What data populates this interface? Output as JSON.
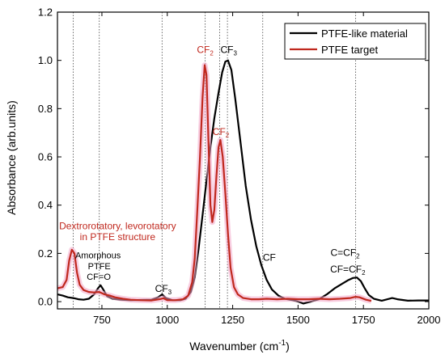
{
  "chart_data": {
    "type": "line",
    "xlabel": "Wavenumber (cm",
    "xlabel_sup": "-1",
    "xlabel_end": ")",
    "ylabel": "Absorbance (arb.units)",
    "xlim": [
      580,
      2000
    ],
    "ylim": [
      -0.03,
      1.2
    ],
    "xticks": [
      750,
      1000,
      1250,
      1500,
      1750,
      2000
    ],
    "xtick_labels": [
      "750",
      "1000",
      "1250",
      "1500",
      "1750",
      "2000"
    ],
    "yticks": [
      0.0,
      0.2,
      0.4,
      0.6,
      0.8,
      1.0,
      1.2
    ],
    "ytick_labels": [
      "0.0",
      "0.2",
      "0.4",
      "0.6",
      "0.8",
      "1.0",
      "1.2"
    ],
    "reference_lines_x": [
      640,
      740,
      980,
      1145,
      1200,
      1230,
      1365,
      1720
    ],
    "legend_position": "top-right",
    "series": [
      {
        "name": "PTFE-like material",
        "color": "#000000",
        "points": [
          [
            580,
            0.03
          ],
          [
            600,
            0.025
          ],
          [
            620,
            0.018
          ],
          [
            640,
            0.015
          ],
          [
            660,
            0.01
          ],
          [
            680,
            0.008
          ],
          [
            700,
            0.012
          ],
          [
            720,
            0.03
          ],
          [
            735,
            0.055
          ],
          [
            745,
            0.068
          ],
          [
            755,
            0.05
          ],
          [
            770,
            0.022
          ],
          [
            790,
            0.012
          ],
          [
            820,
            0.008
          ],
          [
            860,
            0.006
          ],
          [
            900,
            0.007
          ],
          [
            940,
            0.008
          ],
          [
            965,
            0.018
          ],
          [
            980,
            0.03
          ],
          [
            995,
            0.015
          ],
          [
            1020,
            0.006
          ],
          [
            1050,
            0.006
          ],
          [
            1070,
            0.012
          ],
          [
            1090,
            0.04
          ],
          [
            1105,
            0.1
          ],
          [
            1120,
            0.22
          ],
          [
            1135,
            0.36
          ],
          [
            1150,
            0.5
          ],
          [
            1165,
            0.64
          ],
          [
            1180,
            0.76
          ],
          [
            1195,
            0.86
          ],
          [
            1210,
            0.95
          ],
          [
            1222,
            0.995
          ],
          [
            1232,
            1.0
          ],
          [
            1245,
            0.96
          ],
          [
            1260,
            0.84
          ],
          [
            1280,
            0.66
          ],
          [
            1300,
            0.48
          ],
          [
            1320,
            0.34
          ],
          [
            1340,
            0.23
          ],
          [
            1360,
            0.15
          ],
          [
            1380,
            0.09
          ],
          [
            1400,
            0.05
          ],
          [
            1425,
            0.025
          ],
          [
            1450,
            0.012
          ],
          [
            1480,
            0.006
          ],
          [
            1500,
            0.0
          ],
          [
            1520,
            -0.008
          ],
          [
            1550,
            0.0
          ],
          [
            1580,
            0.01
          ],
          [
            1610,
            0.03
          ],
          [
            1640,
            0.055
          ],
          [
            1670,
            0.075
          ],
          [
            1690,
            0.088
          ],
          [
            1710,
            0.098
          ],
          [
            1725,
            0.1
          ],
          [
            1740,
            0.085
          ],
          [
            1755,
            0.055
          ],
          [
            1770,
            0.028
          ],
          [
            1790,
            0.012
          ],
          [
            1820,
            0.004
          ],
          [
            1860,
            0.015
          ],
          [
            1880,
            0.01
          ],
          [
            1920,
            0.004
          ],
          [
            1960,
            0.005
          ],
          [
            2000,
            0.005
          ]
        ]
      },
      {
        "name": "PTFE target",
        "color": "#c0281e",
        "points": [
          [
            580,
            0.055
          ],
          [
            600,
            0.06
          ],
          [
            615,
            0.09
          ],
          [
            625,
            0.17
          ],
          [
            635,
            0.215
          ],
          [
            645,
            0.2
          ],
          [
            655,
            0.12
          ],
          [
            665,
            0.07
          ],
          [
            680,
            0.048
          ],
          [
            700,
            0.04
          ],
          [
            720,
            0.038
          ],
          [
            740,
            0.04
          ],
          [
            760,
            0.03
          ],
          [
            780,
            0.025
          ],
          [
            800,
            0.018
          ],
          [
            830,
            0.012
          ],
          [
            860,
            0.008
          ],
          [
            900,
            0.006
          ],
          [
            940,
            0.005
          ],
          [
            970,
            0.01
          ],
          [
            985,
            0.014
          ],
          [
            1000,
            0.006
          ],
          [
            1030,
            0.006
          ],
          [
            1060,
            0.01
          ],
          [
            1080,
            0.025
          ],
          [
            1095,
            0.08
          ],
          [
            1105,
            0.18
          ],
          [
            1115,
            0.38
          ],
          [
            1125,
            0.6
          ],
          [
            1135,
            0.85
          ],
          [
            1143,
            0.98
          ],
          [
            1150,
            0.94
          ],
          [
            1158,
            0.65
          ],
          [
            1165,
            0.4
          ],
          [
            1172,
            0.33
          ],
          [
            1180,
            0.38
          ],
          [
            1188,
            0.52
          ],
          [
            1196,
            0.64
          ],
          [
            1203,
            0.67
          ],
          [
            1212,
            0.6
          ],
          [
            1222,
            0.45
          ],
          [
            1232,
            0.28
          ],
          [
            1242,
            0.14
          ],
          [
            1255,
            0.06
          ],
          [
            1270,
            0.03
          ],
          [
            1290,
            0.015
          ],
          [
            1320,
            0.01
          ],
          [
            1350,
            0.01
          ],
          [
            1380,
            0.012
          ],
          [
            1420,
            0.01
          ],
          [
            1460,
            0.012
          ],
          [
            1500,
            0.01
          ],
          [
            1540,
            0.01
          ],
          [
            1580,
            0.012
          ],
          [
            1620,
            0.01
          ],
          [
            1660,
            0.012
          ],
          [
            1700,
            0.015
          ],
          [
            1720,
            0.02
          ],
          [
            1735,
            0.018
          ],
          [
            1760,
            0.008
          ],
          [
            1780,
            0.003
          ]
        ]
      }
    ],
    "annotations": [
      {
        "text": "CF",
        "sub": "2",
        "color": "red",
        "x": 1145,
        "y": 1.03
      },
      {
        "text": "CF",
        "sub": "3",
        "color": "black",
        "x": 1235,
        "y": 1.03
      },
      {
        "text": "CF",
        "sub": "2",
        "color": "red",
        "x": 1205,
        "y": 0.69
      },
      {
        "text": "CF",
        "sub": "3",
        "color": "black",
        "x": 985,
        "y": 0.04
      },
      {
        "text": "CF",
        "sub": "",
        "color": "black",
        "x": 1390,
        "y": 0.17
      },
      {
        "text": "C=CF",
        "sub": "2",
        "color": "black",
        "x": 1680,
        "y": 0.19
      },
      {
        "text": "CF=CF",
        "sub": "2",
        "color": "black",
        "x": 1690,
        "y": 0.12
      },
      {
        "text": "Amorphous",
        "sub": "",
        "color": "black-sm",
        "x": 735,
        "y": 0.18
      },
      {
        "text": "PTFE",
        "sub": "",
        "color": "black-sm",
        "x": 740,
        "y": 0.135
      },
      {
        "text": "CF=O",
        "sub": "",
        "color": "black-sm",
        "x": 738,
        "y": 0.09
      },
      {
        "text": "Dextrorotatory, levorotatory",
        "sub": "",
        "color": "red",
        "x": 810,
        "y": 0.3
      },
      {
        "text": "in PTFE structure",
        "sub": "",
        "color": "red",
        "x": 810,
        "y": 0.255
      }
    ]
  }
}
